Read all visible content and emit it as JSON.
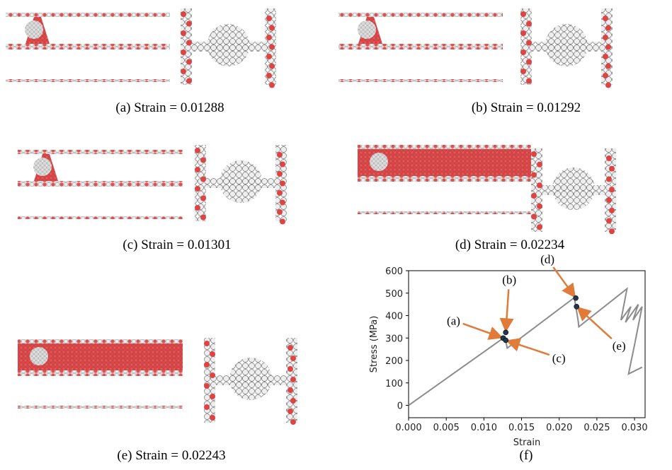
{
  "captions": [
    "(a) Strain = 0.01288",
    "(b) Strain = 0.01292",
    "(c) Strain = 0.01301",
    "(d) Strain = 0.02234",
    "(e) Strain = 0.02243",
    "(f)"
  ],
  "chart_data": {
    "type": "line",
    "xlabel": "Strain",
    "ylabel": "Stress (MPa)",
    "xlim": [
      0,
      0.0314
    ],
    "ylim": [
      -55,
      600
    ],
    "xticks": [
      {
        "value": 0,
        "label": "0.000"
      },
      {
        "value": 0.005,
        "label": "0.005"
      },
      {
        "value": 0.01,
        "label": "0.010"
      },
      {
        "value": 0.015,
        "label": "0.015"
      },
      {
        "value": 0.02,
        "label": "0.020"
      },
      {
        "value": 0.025,
        "label": "0.025"
      },
      {
        "value": 0.03,
        "label": "0.030"
      }
    ],
    "yticks": [
      0,
      100,
      200,
      300,
      400,
      500,
      600
    ],
    "series": [
      {
        "color": "#8c8c8c",
        "x": [
          0,
          0.0128,
          0.013,
          0.0131,
          0.022,
          0.0225,
          0.0226,
          0.029,
          0.0282,
          0.0295,
          0.0288,
          0.0305,
          0.0298,
          0.031,
          0.03,
          0.0292,
          0.031
        ],
        "values": [
          0,
          305,
          270,
          255,
          480,
          380,
          350,
          520,
          380,
          440,
          370,
          450,
          380,
          440,
          270,
          140,
          170
        ]
      }
    ],
    "annotations": [
      {
        "text": "(a)",
        "x": 0.01255,
        "y": 300
      },
      {
        "text": "(b)",
        "x": 0.0129,
        "y": 325
      },
      {
        "text": "(c)",
        "x": 0.0129,
        "y": 290
      },
      {
        "text": "(d)",
        "x": 0.0222,
        "y": 478
      },
      {
        "text": "(e)",
        "x": 0.0223,
        "y": 440
      }
    ],
    "marker_color": "#1f3a4f",
    "arrow_color": "#e07b39"
  }
}
